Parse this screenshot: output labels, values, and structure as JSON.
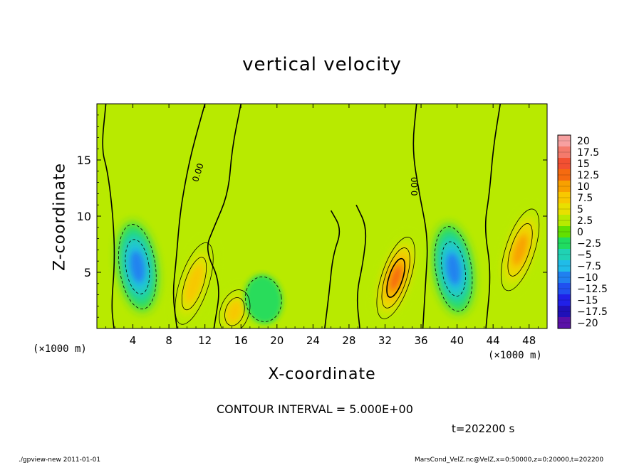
{
  "chart_data": {
    "type": "heatmap",
    "title": "vertical velocity",
    "xlabel": "X-coordinate",
    "ylabel": "Z-coordinate",
    "x_unit_left": "(×1000 m)",
    "x_unit_right": "(×1000 m)",
    "xlim": [
      0,
      50
    ],
    "ylim": [
      0,
      20
    ],
    "x_ticks": [
      4,
      8,
      12,
      16,
      20,
      24,
      28,
      32,
      36,
      40,
      44,
      48
    ],
    "y_ticks": [
      5,
      10,
      15
    ],
    "contour_interval_text": "CONTOUR INTERVAL = 5.000E+00",
    "contour_labels": [
      "0.00",
      "0.00"
    ],
    "time_text": "t=202200 s",
    "colorbar": {
      "levels": [
        20,
        17.5,
        15,
        12.5,
        10,
        7.5,
        5,
        2.5,
        0,
        -2.5,
        -5,
        -7.5,
        -10,
        -12.5,
        -15,
        -17.5,
        -20
      ],
      "labels": [
        "20",
        "17.5",
        "15",
        "12.5",
        "10",
        "7.5",
        "5",
        "2.5",
        "0",
        "−2.5",
        "−5",
        "−7.5",
        "−10",
        "−12.5",
        "−15",
        "−17.5",
        "−20"
      ],
      "colors": [
        "#f7a0a0",
        "#f47a6c",
        "#f25032",
        "#f56a10",
        "#f8a000",
        "#f8c800",
        "#e8e000",
        "#b8ea00",
        "#62e000",
        "#20dc60",
        "#20d2b4",
        "#20bce8",
        "#2080f0",
        "#2050f0",
        "#2020e8",
        "#2010b8",
        "#5a10a8"
      ]
    },
    "features": [
      {
        "kind": "downdraft",
        "x": 4.5,
        "z": 5.5,
        "peak": -10
      },
      {
        "kind": "updraft",
        "x": 10.8,
        "z": 4.0,
        "peak": 7.5
      },
      {
        "kind": "updraft",
        "x": 15.3,
        "z": 1.5,
        "peak": 7.5
      },
      {
        "kind": "downdraft",
        "x": 18.5,
        "z": 2.6,
        "peak": -2.5
      },
      {
        "kind": "updraft",
        "x": 33.2,
        "z": 4.5,
        "peak": 12.5
      },
      {
        "kind": "downdraft",
        "x": 39.6,
        "z": 5.3,
        "peak": -10
      },
      {
        "kind": "updraft",
        "x": 47.0,
        "z": 7.0,
        "peak": 10
      }
    ]
  },
  "footer": {
    "left": "./gpview-new   2011-01-01",
    "right": "MarsCond_VelZ.nc@VelZ,x=0:50000,z=0:20000,t=202200"
  }
}
